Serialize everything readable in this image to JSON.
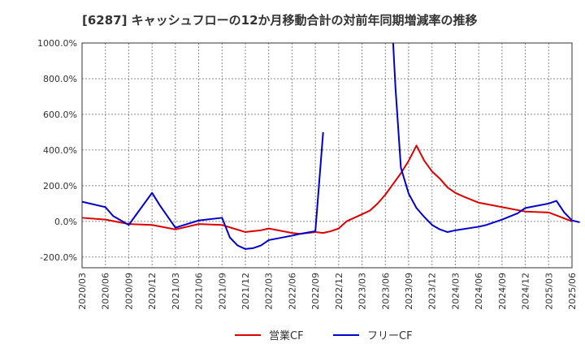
{
  "chart_data": {
    "type": "line",
    "title": "[6287]  キャッシュフローの12か月移動合計の対前年同期増減率の推移",
    "xlabel": "",
    "ylabel": "",
    "ylim": [
      -260,
      1000
    ],
    "yticks": [
      1000,
      800,
      600,
      400,
      200,
      0,
      -200
    ],
    "ytick_labels": [
      "1000.0%",
      "800.0%",
      "600.0%",
      "400.0%",
      "200.0%",
      "0.0%",
      "-200.0%"
    ],
    "x_tick_labels": [
      "2020/03",
      "2020/06",
      "2020/09",
      "2020/12",
      "2021/03",
      "2021/06",
      "2021/09",
      "2021/12",
      "2022/03",
      "2022/06",
      "2022/09",
      "2022/12",
      "2023/03",
      "2023/06",
      "2023/09",
      "2023/12",
      "2024/03",
      "2024/06",
      "2024/09",
      "2024/12",
      "2025/03",
      "2025/06"
    ],
    "grid": true,
    "legend_position": "bottom",
    "series": [
      {
        "name": "営業CF",
        "color": "#dd0000",
        "points": [
          [
            0,
            20
          ],
          [
            3,
            10
          ],
          [
            6,
            -15
          ],
          [
            9,
            -20
          ],
          [
            12,
            -45
          ],
          [
            15,
            -15
          ],
          [
            18,
            -20
          ],
          [
            21,
            -60
          ],
          [
            22,
            -55
          ],
          [
            23,
            -50
          ],
          [
            24,
            -40
          ],
          [
            27,
            -65
          ],
          [
            28,
            -70
          ],
          [
            30,
            -60
          ],
          [
            31,
            -65
          ],
          [
            32,
            -55
          ],
          [
            33,
            -40
          ],
          [
            34,
            0
          ],
          [
            35,
            20
          ],
          [
            36,
            40
          ],
          [
            37,
            60
          ],
          [
            38,
            100
          ],
          [
            39,
            150
          ],
          [
            40,
            210
          ],
          [
            41,
            270
          ],
          [
            42,
            340
          ],
          [
            43,
            425
          ],
          [
            44,
            340
          ],
          [
            45,
            280
          ],
          [
            46,
            240
          ],
          [
            47,
            190
          ],
          [
            48,
            160
          ],
          [
            49,
            140
          ],
          [
            51,
            105
          ],
          [
            54,
            80
          ],
          [
            57,
            55
          ],
          [
            60,
            50
          ],
          [
            63,
            0
          ]
        ]
      },
      {
        "name": "フリーCF",
        "color": "#0000cc",
        "points": [
          [
            0,
            110
          ],
          [
            3,
            80
          ],
          [
            4,
            30
          ],
          [
            6,
            -20
          ],
          [
            9,
            160
          ],
          [
            10,
            90
          ],
          [
            12,
            -35
          ],
          [
            15,
            5
          ],
          [
            18,
            20
          ],
          [
            19,
            -90
          ],
          [
            20,
            -135
          ],
          [
            21,
            -155
          ],
          [
            22,
            -150
          ],
          [
            23,
            -135
          ],
          [
            24,
            -105
          ],
          [
            27,
            -80
          ],
          [
            28,
            -70
          ],
          [
            30,
            -55
          ],
          [
            31,
            500
          ],
          null,
          [
            40,
            1000
          ],
          [
            40.3,
            750
          ],
          [
            41,
            300
          ],
          [
            42,
            155
          ],
          [
            43,
            75
          ],
          [
            44,
            25
          ],
          [
            45,
            -20
          ],
          [
            46,
            -45
          ],
          [
            47,
            -60
          ],
          [
            48,
            -50
          ],
          [
            51,
            -30
          ],
          [
            52,
            -20
          ],
          [
            54,
            10
          ],
          [
            56,
            45
          ],
          [
            57,
            75
          ],
          [
            60,
            100
          ],
          [
            61,
            115
          ],
          [
            62,
            50
          ],
          [
            63,
            5
          ],
          [
            64,
            -5
          ]
        ]
      }
    ]
  }
}
